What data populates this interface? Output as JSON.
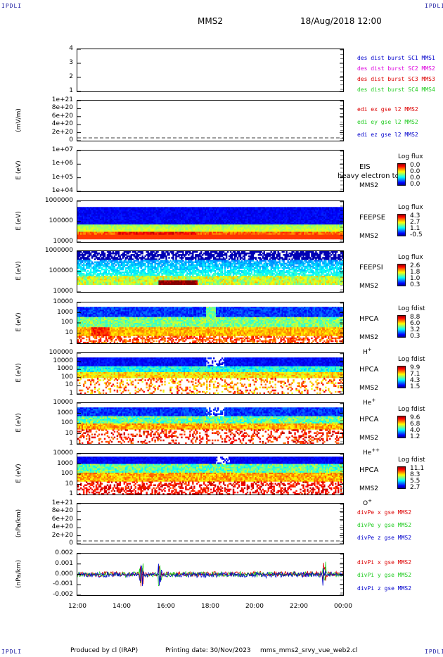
{
  "corner_left_top": "IPDLI",
  "corner_right_top": "IPDLI",
  "corner_left_bottom": "IPDLI",
  "corner_right_bottom": "IPDLI",
  "title_left": "MMS2",
  "title_right": "18/Aug/2018 12:00",
  "footer": {
    "produced": "Produced by cl (IRAP)",
    "printing": "Printing date: 30/Nov/2023",
    "file": "mms_mms2_srvy_vue_web2.cl"
  },
  "colors": {
    "red": "#dd0000",
    "green": "#22cc22",
    "blue": "#0000cc",
    "magenta": "#dd00dd"
  },
  "chart_data": {
    "type": "heatmap",
    "x_ticks": [
      "12:00",
      "14:00",
      "16:00",
      "18:00",
      "20:00",
      "22:00",
      "00:00"
    ],
    "panels": [
      {
        "id": "p1",
        "ylabel": "",
        "yticks": [
          "4",
          "3",
          "2",
          "1"
        ],
        "legend": [
          {
            "text": "des dist burst SC1 MMS1",
            "color": "#0000cc"
          },
          {
            "text": "des dist burst SC2 MMS2",
            "color": "#dd00dd"
          },
          {
            "text": "des dist burst SC3 MMS3",
            "color": "#dd0000"
          },
          {
            "text": "des dist burst SC4 MMS4",
            "color": "#22cc22"
          }
        ]
      },
      {
        "id": "p2",
        "ylabel": "(mV/m)",
        "yticks": [
          "1e+21",
          "8e+20",
          "6e+20",
          "4e+20",
          "2e+20",
          "0"
        ],
        "legend": [
          {
            "text": "edi ex gse l2 MMS2",
            "color": "#dd0000"
          },
          {
            "text": "edi ey gse l2 MMS2",
            "color": "#22cc22"
          },
          {
            "text": "edi ez gse l2 MMS2",
            "color": "#0000cc"
          }
        ]
      },
      {
        "id": "p3",
        "ylabel": "E (eV)",
        "yticks": [
          "1e+07",
          "1e+06",
          "1e+05",
          "1e+04"
        ],
        "right_labels": [
          "EIS",
          "MMS2"
        ],
        "overlay_text": "heavy electron to",
        "colorbar": {
          "title": "Log flux",
          "values": [
            "0.0",
            "0.0",
            "0.0",
            "0.0"
          ]
        }
      },
      {
        "id": "p4",
        "ylabel": "E (eV)",
        "yticks": [
          "1000000",
          "100000",
          "10000"
        ],
        "right_labels": [
          "FEEPSE",
          "MMS2"
        ],
        "colorbar": {
          "title": "Log flux",
          "values": [
            "4.3",
            "2.7",
            "1.1",
            "-0.5"
          ]
        }
      },
      {
        "id": "p5",
        "ylabel": "E (eV)",
        "yticks": [
          "1000000",
          "100000",
          "10000"
        ],
        "right_labels": [
          "FEEPSI",
          "MMS2"
        ],
        "colorbar": {
          "title": "Log flux",
          "values": [
            "2.6",
            "1.8",
            "1.0",
            "0.3"
          ]
        }
      },
      {
        "id": "p6",
        "ylabel": "E (eV)",
        "yticks": [
          "10000",
          "1000",
          "100",
          "10",
          "1"
        ],
        "right_labels": [
          "HPCA",
          "MMS2"
        ],
        "species": "H",
        "species_sup": "+",
        "colorbar": {
          "title": "Log fdist",
          "values": [
            "8.8",
            "6.0",
            "3.2",
            "0.3"
          ]
        }
      },
      {
        "id": "p7",
        "ylabel": "E (eV)",
        "yticks": [
          "100000",
          "10000",
          "1000",
          "100",
          "10",
          "1"
        ],
        "right_labels": [
          "HPCA",
          "MMS2"
        ],
        "species": "He",
        "species_sup": "+",
        "colorbar": {
          "title": "Log fdist",
          "values": [
            "9.9",
            "7.1",
            "4.3",
            "1.5"
          ]
        }
      },
      {
        "id": "p8",
        "ylabel": "E (eV)",
        "yticks": [
          "10000",
          "1000",
          "100",
          "10",
          "1"
        ],
        "right_labels": [
          "HPCA",
          "MMS2"
        ],
        "species": "He",
        "species_sup": "++",
        "colorbar": {
          "title": "Log fdist",
          "values": [
            "9.6",
            "6.8",
            "4.0",
            "1.2"
          ]
        }
      },
      {
        "id": "p9",
        "ylabel": "E (eV)",
        "yticks": [
          "10000",
          "1000",
          "100",
          "10",
          "1"
        ],
        "right_labels": [
          "HPCA",
          "MMS2"
        ],
        "species": "O",
        "species_sup": "+",
        "colorbar": {
          "title": "Log fdist",
          "values": [
            "11.1",
            "8.3",
            "5.5",
            "2.7"
          ]
        }
      },
      {
        "id": "p10",
        "ylabel": "(nPa/km)",
        "yticks": [
          "1e+21",
          "8e+20",
          "6e+20",
          "4e+20",
          "2e+20",
          "0"
        ],
        "legend": [
          {
            "text": "divPe x gse MMS2",
            "color": "#dd0000"
          },
          {
            "text": "divPe y gse MMS2",
            "color": "#22cc22"
          },
          {
            "text": "divPe z gse MMS2",
            "color": "#0000cc"
          }
        ]
      },
      {
        "id": "p11",
        "ylabel": "(nPa/km)",
        "yticks": [
          "0.002",
          "0.001",
          "0.000",
          "-0.001",
          "-0.002"
        ],
        "legend": [
          {
            "text": "divPi x gse MMS2",
            "color": "#dd0000"
          },
          {
            "text": "divPi y gse MMS2",
            "color": "#22cc22"
          },
          {
            "text": "divPi z gse MMS2",
            "color": "#0000cc"
          }
        ]
      }
    ]
  }
}
